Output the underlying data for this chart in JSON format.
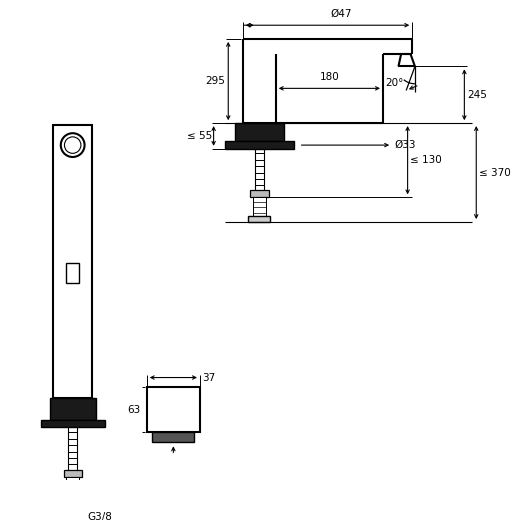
{
  "bg_color": "#ffffff",
  "line_color": "#000000",
  "fig_size": [
    5.2,
    5.2
  ],
  "dpi": 100,
  "annotations": {
    "dim_47": "Ø47",
    "dim_295": "295",
    "dim_180": "180",
    "dim_245": "245",
    "dim_55": "≤ 55",
    "dim_33": "Ø33",
    "dim_130": "≤ 130",
    "dim_370": "≤ 370",
    "dim_37": "37",
    "dim_63": "63",
    "dim_G38": "G3/8",
    "dim_20": "20°"
  }
}
